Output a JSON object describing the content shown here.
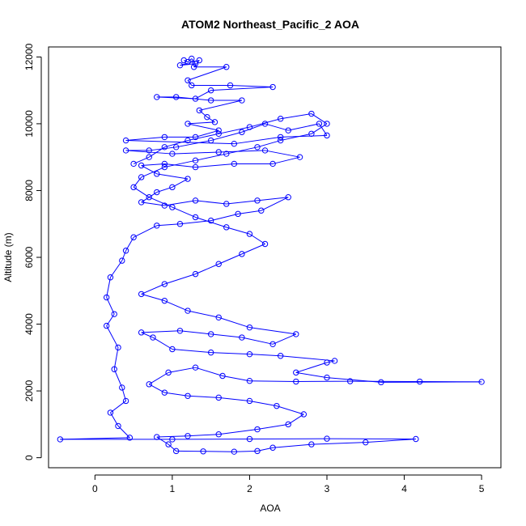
{
  "chart_data": {
    "type": "line",
    "title": "ATOM2 Northeast_Pacific_2 AOA",
    "xlabel": "AOA",
    "ylabel": "Altitude (m)",
    "xlim": [
      -0.6,
      5.25
    ],
    "ylim": [
      -300,
      12300
    ],
    "x_ticks": [
      0,
      1,
      2,
      3,
      4,
      5
    ],
    "y_ticks": [
      0,
      2000,
      4000,
      6000,
      8000,
      10000,
      12000
    ],
    "series_color": "#0000ff",
    "marker": "open-circle",
    "grid": false,
    "legend": "none",
    "series": [
      {
        "points": [
          [
            1.15,
            11900
          ],
          [
            1.2,
            11850
          ],
          [
            1.25,
            11950
          ],
          [
            1.3,
            11800
          ],
          [
            1.1,
            11750
          ],
          [
            1.35,
            11900
          ],
          [
            1.28,
            11700
          ],
          [
            1.7,
            11700
          ],
          [
            1.2,
            11300
          ],
          [
            1.25,
            11150
          ],
          [
            1.75,
            11150
          ],
          [
            2.3,
            11100
          ],
          [
            1.5,
            11000
          ],
          [
            1.3,
            10750
          ],
          [
            0.8,
            10800
          ],
          [
            1.05,
            10800
          ],
          [
            1.5,
            10700
          ],
          [
            1.9,
            10700
          ],
          [
            1.35,
            10400
          ],
          [
            1.45,
            10200
          ],
          [
            1.55,
            10050
          ],
          [
            1.2,
            10000
          ],
          [
            1.6,
            9800
          ],
          [
            1.3,
            9600
          ],
          [
            0.9,
            9600
          ],
          [
            0.4,
            9500
          ],
          [
            1.8,
            9400
          ],
          [
            2.4,
            9600
          ],
          [
            3.0,
            9650
          ],
          [
            2.9,
            10000
          ],
          [
            2.5,
            9800
          ],
          [
            2.2,
            10000
          ],
          [
            1.9,
            9750
          ],
          [
            1.5,
            9500
          ],
          [
            1.05,
            9300
          ],
          [
            0.7,
            9200
          ],
          [
            0.4,
            9200
          ],
          [
            1.0,
            9100
          ],
          [
            1.6,
            9150
          ],
          [
            2.2,
            9200
          ],
          [
            2.65,
            9000
          ],
          [
            2.3,
            8800
          ],
          [
            1.8,
            8800
          ],
          [
            1.3,
            8700
          ],
          [
            0.9,
            8800
          ],
          [
            0.6,
            8750
          ],
          [
            0.8,
            8500
          ],
          [
            1.2,
            8350
          ],
          [
            1.0,
            8100
          ],
          [
            0.8,
            7950
          ],
          [
            0.6,
            7650
          ],
          [
            0.9,
            7550
          ],
          [
            1.3,
            7700
          ],
          [
            1.7,
            7600
          ],
          [
            2.1,
            7700
          ],
          [
            2.5,
            7800
          ],
          [
            2.15,
            7400
          ],
          [
            1.85,
            7300
          ],
          [
            1.5,
            7100
          ],
          [
            1.1,
            7000
          ],
          [
            0.8,
            6950
          ],
          [
            0.5,
            6600
          ],
          [
            0.4,
            6200
          ],
          [
            0.35,
            5900
          ],
          [
            0.2,
            5400
          ],
          [
            0.15,
            4800
          ],
          [
            0.25,
            4300
          ],
          [
            0.15,
            3950
          ],
          [
            0.3,
            3300
          ],
          [
            0.25,
            2650
          ],
          [
            0.35,
            2100
          ],
          [
            0.4,
            1700
          ],
          [
            0.2,
            1350
          ],
          [
            0.3,
            950
          ],
          [
            0.45,
            600
          ],
          [
            -0.45,
            550
          ],
          [
            1.0,
            550
          ],
          [
            2.0,
            560
          ],
          [
            3.0,
            570
          ],
          [
            4.15,
            560
          ],
          [
            3.5,
            460
          ],
          [
            2.8,
            400
          ],
          [
            2.3,
            300
          ],
          [
            2.1,
            200
          ],
          [
            1.8,
            180
          ],
          [
            1.4,
            190
          ],
          [
            1.05,
            200
          ],
          [
            0.95,
            400
          ],
          [
            0.8,
            620
          ],
          [
            1.2,
            650
          ],
          [
            1.6,
            700
          ],
          [
            2.1,
            850
          ],
          [
            2.5,
            1000
          ],
          [
            2.7,
            1300
          ],
          [
            2.35,
            1550
          ],
          [
            2.0,
            1700
          ],
          [
            1.6,
            1800
          ],
          [
            1.2,
            1850
          ],
          [
            0.9,
            1950
          ],
          [
            0.7,
            2200
          ],
          [
            0.95,
            2550
          ],
          [
            1.3,
            2700
          ],
          [
            1.65,
            2450
          ],
          [
            2.0,
            2300
          ],
          [
            2.6,
            2280
          ],
          [
            3.3,
            2290
          ],
          [
            4.2,
            2280
          ],
          [
            5.0,
            2270
          ],
          [
            3.7,
            2260
          ],
          [
            3.0,
            2400
          ],
          [
            2.6,
            2550
          ],
          [
            3.0,
            2850
          ],
          [
            3.1,
            2900
          ],
          [
            2.4,
            3050
          ],
          [
            2.0,
            3100
          ],
          [
            1.5,
            3150
          ],
          [
            1.0,
            3250
          ],
          [
            0.75,
            3600
          ],
          [
            0.6,
            3750
          ],
          [
            1.1,
            3800
          ],
          [
            1.5,
            3700
          ],
          [
            1.9,
            3600
          ],
          [
            2.3,
            3400
          ],
          [
            2.6,
            3700
          ],
          [
            2.0,
            3900
          ],
          [
            1.6,
            4200
          ],
          [
            1.2,
            4400
          ],
          [
            0.9,
            4700
          ],
          [
            0.6,
            4900
          ],
          [
            0.9,
            5200
          ],
          [
            1.3,
            5500
          ],
          [
            1.6,
            5800
          ],
          [
            1.9,
            6100
          ],
          [
            2.2,
            6400
          ],
          [
            2.0,
            6700
          ],
          [
            1.7,
            6900
          ],
          [
            1.3,
            7200
          ],
          [
            1.0,
            7500
          ],
          [
            0.7,
            7800
          ],
          [
            0.5,
            8100
          ],
          [
            0.6,
            8400
          ],
          [
            0.9,
            8700
          ],
          [
            1.3,
            8900
          ],
          [
            1.7,
            9100
          ],
          [
            2.1,
            9300
          ],
          [
            2.4,
            9500
          ],
          [
            2.8,
            9700
          ],
          [
            3.0,
            10000
          ],
          [
            2.8,
            10300
          ],
          [
            2.4,
            10150
          ],
          [
            2.0,
            9900
          ],
          [
            1.6,
            9700
          ],
          [
            1.2,
            9500
          ],
          [
            0.9,
            9300
          ],
          [
            0.7,
            9000
          ],
          [
            0.5,
            8800
          ]
        ]
      }
    ]
  }
}
